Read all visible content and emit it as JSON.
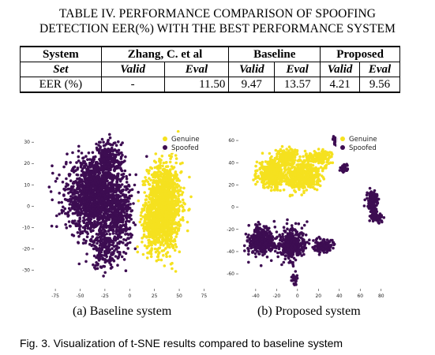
{
  "table": {
    "caption_line1": "TABLE IV. PERFORMANCE COMPARISON OF SPOOFING",
    "caption_line2": "DETECTION EER(%) WITH THE BEST PERFORMANCE SYSTEM",
    "header": [
      "System",
      "Zhang, C. et al",
      "Baseline",
      "Proposed"
    ],
    "subheader": [
      "Set",
      "Valid",
      "Eval",
      "Valid",
      "Eval",
      "Valid",
      "Eval"
    ],
    "row": [
      "EER (%)",
      "-",
      "11.50",
      "9.47",
      "13.57",
      "4.21",
      "9.56"
    ]
  },
  "colors": {
    "genuine": "#f5e11f",
    "spoofed": "#3d0d52"
  },
  "chart_data": [
    {
      "type": "scatter",
      "title": "",
      "legend": [
        "Genuine",
        "Spoofed"
      ],
      "legend_position": "top-right",
      "xlim": [
        -95,
        85
      ],
      "ylim": [
        -38,
        36
      ],
      "x_ticks": [
        "-75",
        "-50",
        "-25",
        "0",
        "25",
        "50",
        "75"
      ],
      "y_ticks": [
        "30",
        "20",
        "10",
        "0",
        "-10",
        "-20",
        "-30"
      ],
      "series": [
        {
          "name": "Genuine",
          "clusters": [
            [
              35,
              0,
              14,
              17,
              1300
            ],
            [
              22,
              -8,
              8,
              10,
              250
            ]
          ]
        },
        {
          "name": "Spoofed",
          "clusters": [
            [
              -35,
              5,
              24,
              14,
              1600
            ],
            [
              -10,
              -5,
              10,
              12,
              300
            ],
            [
              -20,
              22,
              10,
              8,
              200
            ],
            [
              -25,
              -20,
              12,
              8,
              200
            ]
          ]
        }
      ]
    },
    {
      "type": "scatter",
      "title": "",
      "legend": [
        "Genuine",
        "Spoofed"
      ],
      "legend_position": "top-right",
      "xlim": [
        -55,
        90
      ],
      "ylim": [
        -72,
        70
      ],
      "x_ticks": [
        "-40",
        "-20",
        "0",
        "20",
        "40",
        "60",
        "80"
      ],
      "y_ticks": [
        "60",
        "40",
        "20",
        "0",
        "-20",
        "-40",
        "-60"
      ],
      "series": [
        {
          "name": "Genuine",
          "clusters": [
            [
              -25,
              30,
              11,
              10,
              400
            ],
            [
              5,
              28,
              14,
              10,
              500
            ],
            [
              -10,
              45,
              8,
              6,
              200
            ],
            [
              20,
              45,
              10,
              5,
              150
            ]
          ]
        },
        {
          "name": "Spoofed",
          "clusters": [
            [
              -35,
              -30,
              10,
              11,
              400
            ],
            [
              -5,
              -33,
              11,
              12,
              350
            ],
            [
              25,
              -35,
              8,
              5,
              120
            ],
            [
              -3,
              -65,
              2,
              4,
              40
            ],
            [
              72,
              5,
              4,
              8,
              150
            ],
            [
              75,
              -10,
              5,
              4,
              60
            ],
            [
              45,
              35,
              3,
              3,
              40
            ],
            [
              36,
              60,
              1.5,
              3,
              25
            ]
          ]
        }
      ]
    }
  ],
  "subcaptions": [
    "(a) Baseline system",
    "(b) Proposed system"
  ],
  "figure_caption": "Fig.  3. Visualization of t-SNE results compared to baseline system"
}
